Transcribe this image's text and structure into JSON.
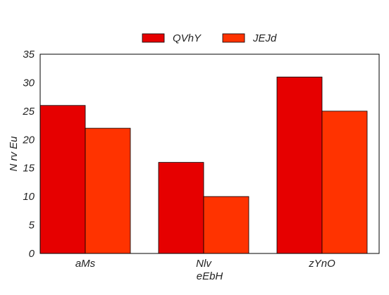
{
  "chart_data": {
    "type": "bar",
    "title": "",
    "xlabel": "eEbH",
    "ylabel": "N rv Eu",
    "categories": [
      "aMs",
      "Nlv",
      "zYnO"
    ],
    "series": [
      {
        "name": "QVhY",
        "values": [
          26,
          16,
          31
        ],
        "color": "#e60000"
      },
      {
        "name": "JEJd",
        "values": [
          22,
          10,
          25
        ],
        "color": "#ff3300"
      }
    ],
    "ylim": [
      0,
      35
    ],
    "yticks": [
      "0",
      "5",
      "10",
      "15",
      "20",
      "25",
      "30",
      "35"
    ],
    "grid": false,
    "legend": "top-center"
  }
}
